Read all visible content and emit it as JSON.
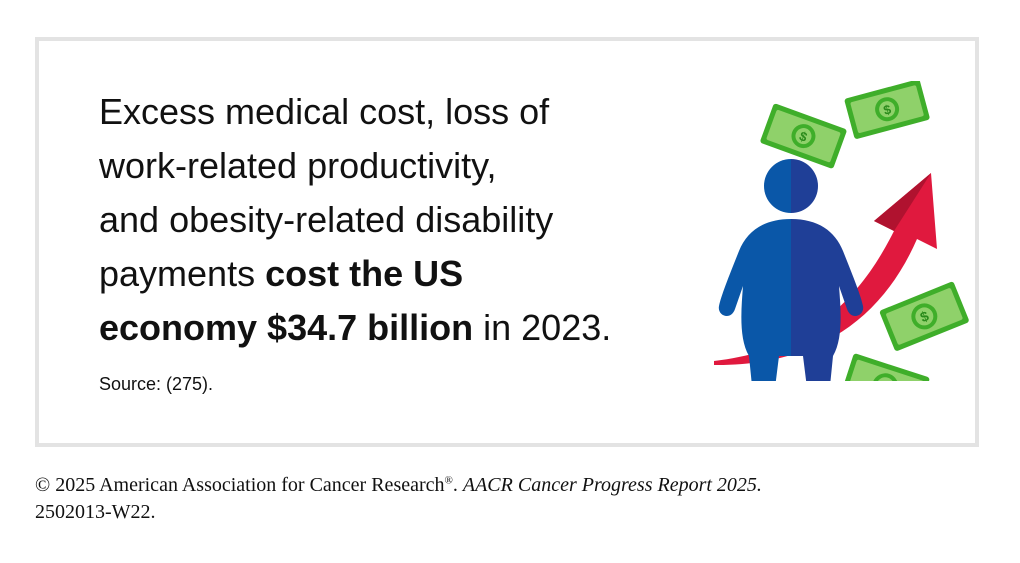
{
  "headline": {
    "line1": "Excess medical cost, loss of",
    "line2": "work-related productivity,",
    "line3": "and obesity-related disability",
    "line4_normal": "payments ",
    "line4_bold": "cost the US",
    "line5_bold": "economy $34.7 billion",
    "line5_normal": " in 2023."
  },
  "source": "Source: (275).",
  "illustration": {
    "icons": [
      "person-with-obesity-icon",
      "rising-arrow-icon",
      "banknote-icon"
    ],
    "colors": {
      "person_left": "#0a57a8",
      "person_right": "#1f3f97",
      "arrow": "#e0193e",
      "arrow_shade": "#b0122f",
      "banknote": "#3fae2a",
      "banknote_light": "#8fd16a"
    }
  },
  "footer": {
    "copyright": "© 2025 American Association for Cancer Research",
    "registered": "®",
    "separator": ". ",
    "report_title": "AACR Cancer Progress Report 2025.",
    "code": "2502013-W22."
  }
}
